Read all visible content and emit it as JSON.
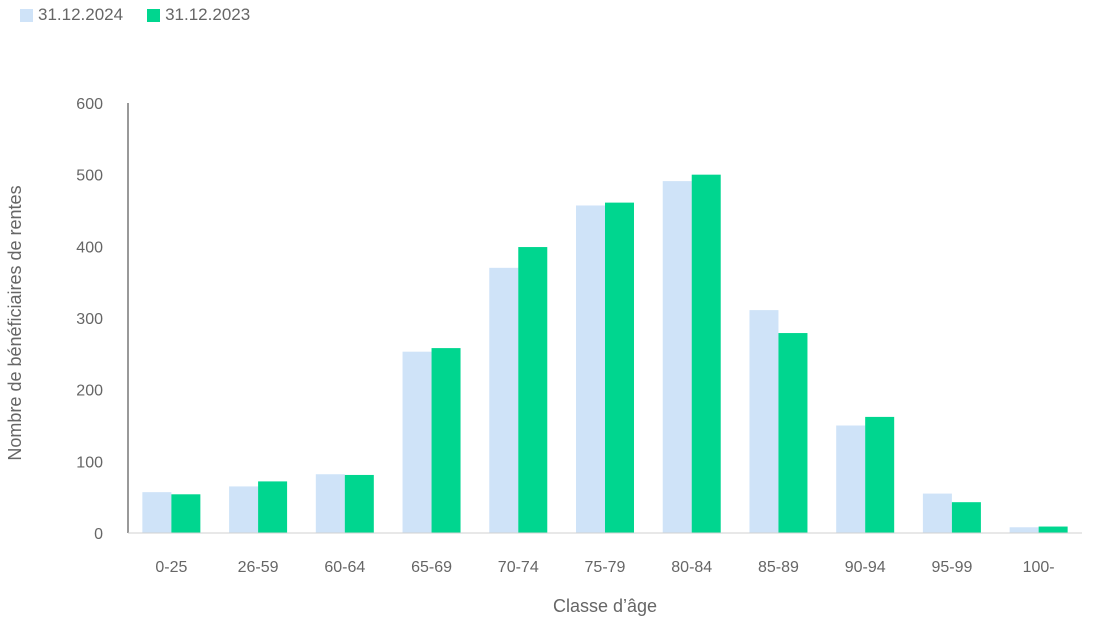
{
  "chart_data": {
    "type": "bar",
    "categories": [
      "0-25",
      "26-59",
      "60-64",
      "65-69",
      "70-74",
      "75-79",
      "80-84",
      "85-89",
      "90-94",
      "95-99",
      "100-"
    ],
    "series": [
      {
        "name": "31.12.2024",
        "color": "#cfe3f8",
        "values": [
          57,
          65,
          82,
          253,
          370,
          457,
          491,
          311,
          150,
          55,
          8
        ]
      },
      {
        "name": "31.12.2023",
        "color": "#00d68f",
        "values": [
          54,
          72,
          81,
          258,
          399,
          461,
          500,
          279,
          162,
          43,
          9
        ]
      }
    ],
    "ylim": [
      0,
      600
    ],
    "yticks": [
      0,
      100,
      200,
      300,
      400,
      500,
      600
    ],
    "xlabel": "Classe d’âge",
    "ylabel": "Nombre de bénéficiaires de rentes",
    "legend_position": "top-left",
    "grid": false
  }
}
